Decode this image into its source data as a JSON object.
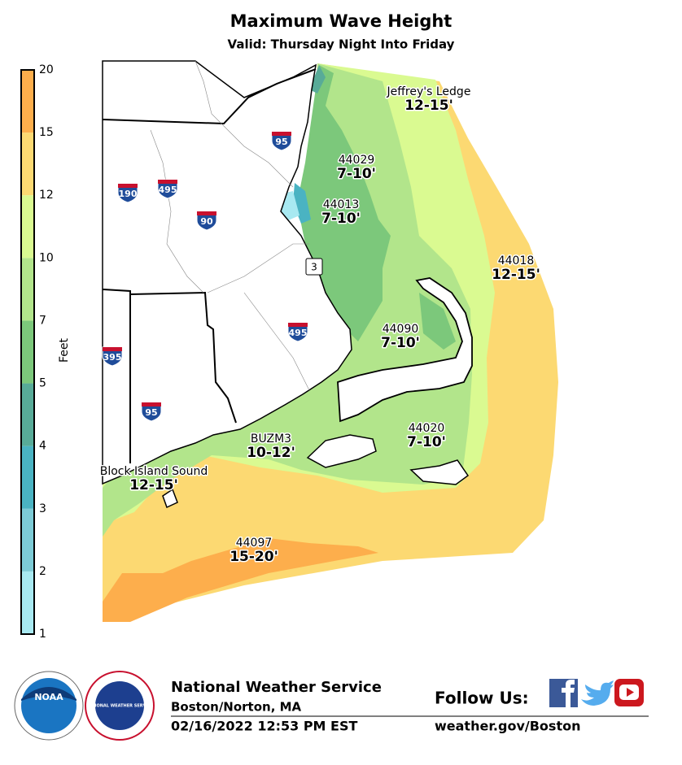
{
  "header": {
    "title": "Maximum Wave Height",
    "subtitle": "Valid: Thursday Night Into Friday"
  },
  "legend": {
    "label": "Feet",
    "ticks": [
      1,
      2,
      3,
      4,
      5,
      7,
      10,
      12,
      15,
      20
    ],
    "colors": [
      "#a8e9f1",
      "#7dcbd6",
      "#4ab3c2",
      "#58ab98",
      "#7cc87b",
      "#b2e58b",
      "#dafa91",
      "#fcd972",
      "#fdae4c"
    ]
  },
  "map": {
    "labels": [
      {
        "name": "Jeffrey's Ledge",
        "range": "12-15'"
      },
      {
        "name": "44029",
        "range": "7-10'"
      },
      {
        "name": "44013",
        "range": "7-10'"
      },
      {
        "name": "44018",
        "range": "12-15'"
      },
      {
        "name": "44090",
        "range": "7-10'"
      },
      {
        "name": "44020",
        "range": "7-10'"
      },
      {
        "name": "BUZM3",
        "range": "10-12'"
      },
      {
        "name": "Block Island Sound",
        "range": "12-15'"
      },
      {
        "name": "44097",
        "range": "15-20'"
      }
    ],
    "highways": [
      "95",
      "190",
      "495",
      "90",
      "3",
      "495",
      "395",
      "95"
    ]
  },
  "footer": {
    "logos": [
      "NOAA",
      "NATIONAL WEATHER SERVICE"
    ],
    "office": "National Weather Service",
    "location": "Boston/Norton, MA",
    "issued": "02/16/2022 12:53 PM EST",
    "follow": "Follow Us:",
    "website": "weather.gov/Boston"
  }
}
